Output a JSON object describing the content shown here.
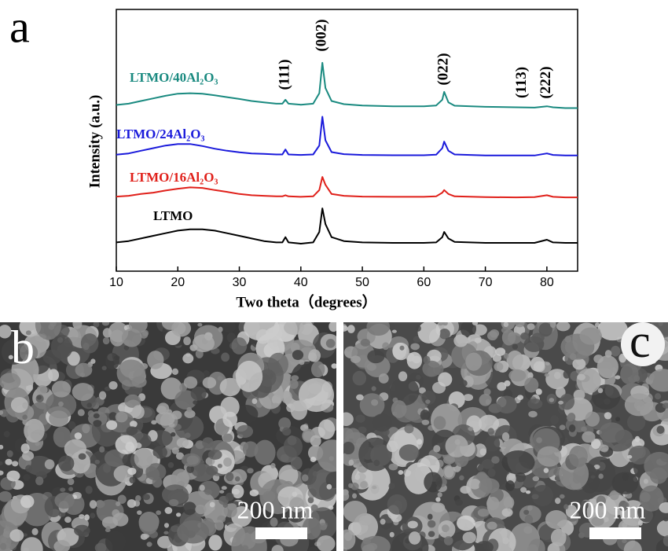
{
  "chart_data": {
    "type": "line",
    "panel_label": "a",
    "xlabel": "Two theta（degrees）",
    "ylabel": "Intensity (a.u.)",
    "xlim": [
      10,
      85
    ],
    "xticks": [
      10,
      20,
      30,
      40,
      50,
      60,
      70,
      80
    ],
    "ylim": [
      0,
      100
    ],
    "x": [
      10,
      12,
      14,
      16,
      18,
      20,
      22,
      24,
      26,
      28,
      30,
      32,
      34,
      36,
      37,
      37.5,
      38,
      40,
      42,
      43,
      43.5,
      44,
      45,
      47,
      50,
      55,
      60,
      62,
      63,
      63.3,
      64,
      65,
      70,
      75,
      78,
      80,
      81,
      83,
      85
    ],
    "series": [
      {
        "name": "LTMO",
        "color": "#000000",
        "values": [
          11,
          11.5,
          12.5,
          13.5,
          14.5,
          15.5,
          16,
          16,
          15.5,
          14.5,
          13.5,
          12.5,
          11.5,
          11,
          11,
          13,
          11,
          10.5,
          11,
          15,
          24,
          18,
          13,
          11.5,
          11,
          10.8,
          10.8,
          11,
          13,
          15,
          12.5,
          11.2,
          10.8,
          10.8,
          10.8,
          12,
          11,
          10.8,
          10.8
        ]
      },
      {
        "name": "LTMO/16Al₂O₃",
        "color": "#e0201a",
        "values": [
          28.5,
          28.8,
          29.5,
          30,
          30.8,
          31.5,
          32,
          31.8,
          31,
          30.3,
          29.5,
          29,
          28.8,
          28.6,
          28.6,
          29,
          28.6,
          28.4,
          28.6,
          31,
          36,
          33,
          29.5,
          28.8,
          28.5,
          28.4,
          28.4,
          28.6,
          30,
          31,
          29.5,
          28.6,
          28.3,
          28.2,
          28.3,
          29,
          28.4,
          28.2,
          28.2
        ]
      },
      {
        "name": "LTMO/24Al₂O₃",
        "color": "#1a1adb",
        "values": [
          44.5,
          45,
          46,
          47,
          48,
          48.6,
          48.6,
          47.8,
          46.8,
          46,
          45.4,
          45,
          44.8,
          44.6,
          44.6,
          46.5,
          44.6,
          44.4,
          44.6,
          48,
          59,
          50,
          45.5,
          44.7,
          44.4,
          44.3,
          44.3,
          44.5,
          47,
          49.5,
          46,
          44.6,
          44.2,
          44.2,
          44.2,
          45,
          44.4,
          44.2,
          44.2
        ]
      },
      {
        "name": "LTMO/40Al₂O₃",
        "color": "#1a8a80",
        "values": [
          63.5,
          64,
          65,
          66,
          67,
          67.8,
          68,
          67.8,
          67.2,
          66.5,
          65.8,
          65,
          64.5,
          64,
          64,
          65.5,
          64,
          63.6,
          64,
          68,
          79.6,
          70,
          65,
          63.8,
          63.3,
          63,
          63,
          63.3,
          65.5,
          68.5,
          64.5,
          63.2,
          62.8,
          62.6,
          62.5,
          63,
          62.6,
          62.3,
          62.3
        ]
      }
    ],
    "annotations": [
      {
        "text": "(111)",
        "x": 37.5
      },
      {
        "text": "(002)",
        "x": 43.5
      },
      {
        "text": "(022)",
        "x": 63.3
      },
      {
        "text": "(113)",
        "x": 76
      },
      {
        "text": "(222)",
        "x": 80
      }
    ]
  },
  "images": [
    {
      "panel_label": "b",
      "scale_bar": "200 nm"
    },
    {
      "panel_label": "c",
      "scale_bar": "200 nm"
    }
  ]
}
